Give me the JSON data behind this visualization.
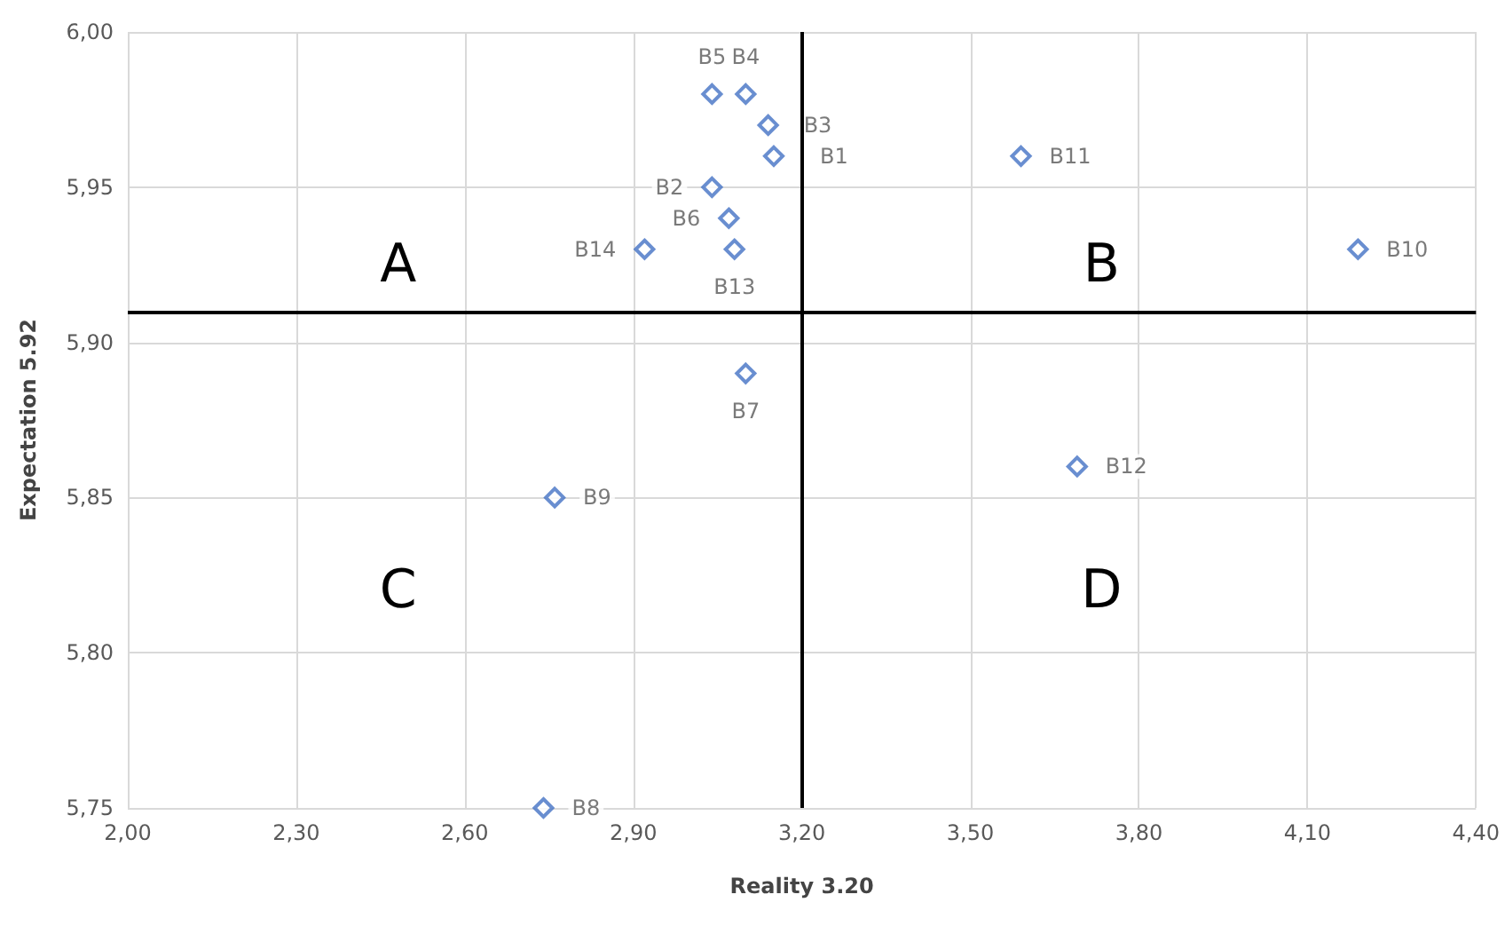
{
  "chart_data": {
    "type": "scatter",
    "xlabel": "Reality 3.20",
    "ylabel": "Expectation 5.92",
    "marker": "diamond",
    "grid": true,
    "legend": false,
    "xlim": [
      2.0,
      4.4
    ],
    "ylim": [
      5.75,
      6.0
    ],
    "xticks": [
      {
        "value": 2.0,
        "label": "2,00"
      },
      {
        "value": 2.3,
        "label": "2,30"
      },
      {
        "value": 2.6,
        "label": "2,60"
      },
      {
        "value": 2.9,
        "label": "2,90"
      },
      {
        "value": 3.2,
        "label": "3,20"
      },
      {
        "value": 3.5,
        "label": "3,50"
      },
      {
        "value": 3.8,
        "label": "3,80"
      },
      {
        "value": 4.1,
        "label": "4,10"
      },
      {
        "value": 4.4,
        "label": "4,40"
      }
    ],
    "yticks": [
      {
        "value": 5.75,
        "label": "5,75"
      },
      {
        "value": 5.8,
        "label": "5,80"
      },
      {
        "value": 5.85,
        "label": "5,85"
      },
      {
        "value": 5.9,
        "label": "5,90"
      },
      {
        "value": 5.95,
        "label": "5,95"
      },
      {
        "value": 6.0,
        "label": "6,00"
      }
    ],
    "series": [
      {
        "name": "B1",
        "color": "#4472c4",
        "x": [
          3.15
        ],
        "values": [
          5.96
        ]
      },
      {
        "name": "B2",
        "color": "#4472c4",
        "x": [
          3.04
        ],
        "values": [
          5.95
        ]
      },
      {
        "name": "B3",
        "color": "#4472c4",
        "x": [
          3.14
        ],
        "values": [
          5.97
        ]
      },
      {
        "name": "B4",
        "color": "#4472c4",
        "x": [
          3.1
        ],
        "values": [
          5.98
        ]
      },
      {
        "name": "B5",
        "color": "#4472c4",
        "x": [
          3.04
        ],
        "values": [
          5.98
        ]
      },
      {
        "name": "B6",
        "color": "#4472c4",
        "x": [
          3.07
        ],
        "values": [
          5.94
        ]
      },
      {
        "name": "B7",
        "color": "#4472c4",
        "x": [
          3.1
        ],
        "values": [
          5.89
        ]
      },
      {
        "name": "B8",
        "color": "#4472c4",
        "x": [
          2.74
        ],
        "values": [
          5.75
        ]
      },
      {
        "name": "B9",
        "color": "#4472c4",
        "x": [
          2.76
        ],
        "values": [
          5.85
        ]
      },
      {
        "name": "B10",
        "color": "#4472c4",
        "x": [
          4.19
        ],
        "values": [
          5.93
        ]
      },
      {
        "name": "B11",
        "color": "#4472c4",
        "x": [
          3.59
        ],
        "values": [
          5.96
        ]
      },
      {
        "name": "B12",
        "color": "#4472c4",
        "x": [
          3.69
        ],
        "values": [
          5.86
        ]
      },
      {
        "name": "B13",
        "color": "#4472c4",
        "x": [
          3.08
        ],
        "values": [
          5.93
        ]
      },
      {
        "name": "B14",
        "color": "#4472c4",
        "x": [
          2.92
        ],
        "values": [
          5.93
        ]
      }
    ],
    "ref_lines": [
      {
        "axis": "x",
        "value": 3.2,
        "color": "#000000"
      },
      {
        "axis": "y",
        "value": 5.91,
        "color": "#000000"
      }
    ],
    "annotations": [
      "A",
      "B",
      "C",
      "D"
    ]
  }
}
